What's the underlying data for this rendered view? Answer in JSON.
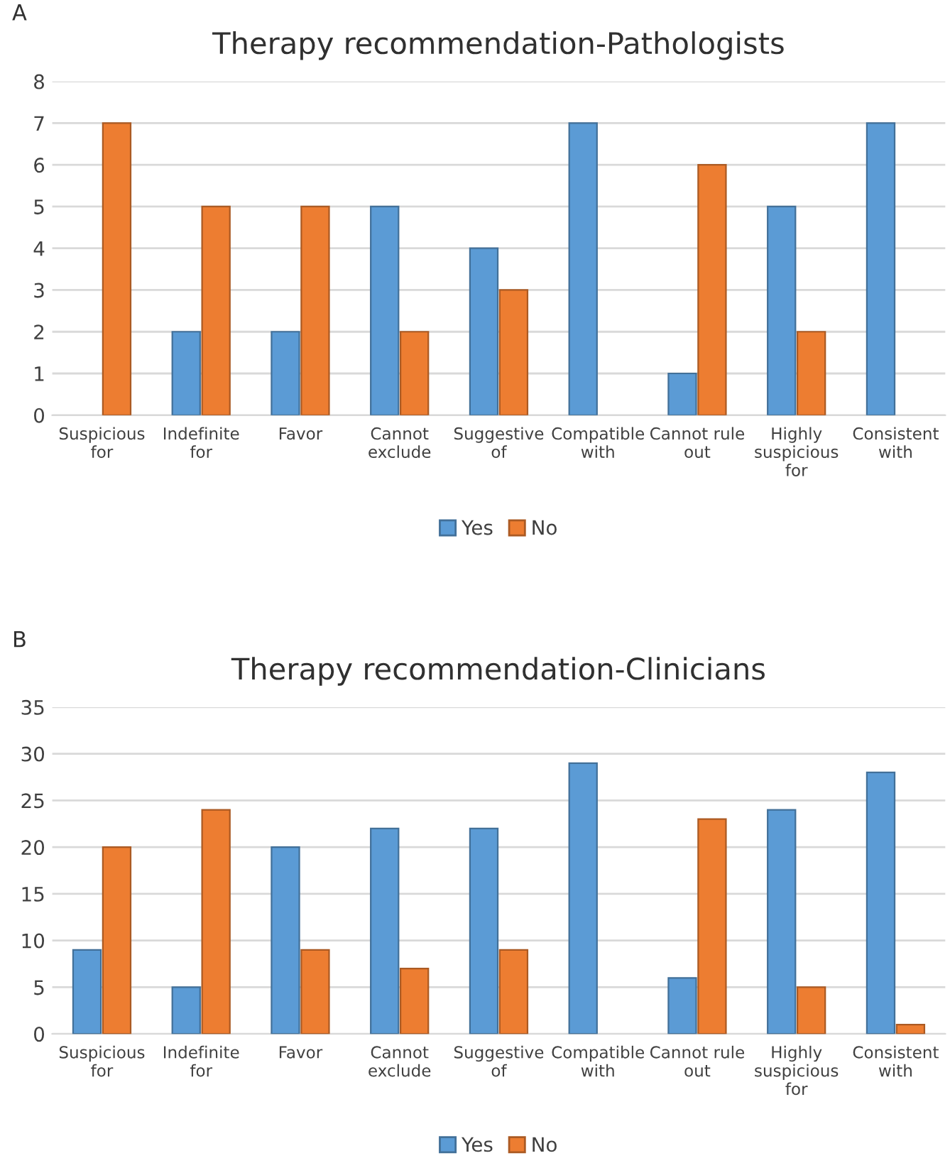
{
  "chart_data": [
    {
      "type": "bar",
      "title": "Therapy recommendation-Pathologists",
      "annotations": [
        "A"
      ],
      "categories": [
        "Suspicious for",
        "Indefinite for",
        "Favor",
        "Cannot exclude",
        "Suggestive of",
        "Compatible with",
        "Cannot rule out",
        "Highly suspicious for",
        "Consistent with"
      ],
      "series": [
        {
          "name": "Yes",
          "color": "#5b9bd5",
          "values": [
            0,
            2,
            2,
            5,
            4,
            7,
            1,
            5,
            7
          ]
        },
        {
          "name": "No",
          "color": "#ed7d31",
          "values": [
            7,
            5,
            5,
            2,
            3,
            0,
            6,
            2,
            0
          ]
        }
      ],
      "ylim": [
        0,
        8
      ],
      "yticks": [
        0,
        1,
        2,
        3,
        4,
        5,
        6,
        7,
        8
      ],
      "grid": "y",
      "legend": "bottom"
    },
    {
      "type": "bar",
      "title": "Therapy recommendation-Clinicians",
      "annotations": [
        "B"
      ],
      "categories": [
        "Suspicious for",
        "Indefinite for",
        "Favor",
        "Cannot exclude",
        "Suggestive of",
        "Compatible with",
        "Cannot rule out",
        "Highly suspicious for",
        "Consistent with"
      ],
      "series": [
        {
          "name": "Yes",
          "color": "#5b9bd5",
          "values": [
            9,
            5,
            20,
            22,
            22,
            29,
            6,
            24,
            28
          ]
        },
        {
          "name": "No",
          "color": "#ed7d31",
          "values": [
            20,
            24,
            9,
            7,
            9,
            0,
            23,
            5,
            1
          ]
        }
      ],
      "ylim": [
        0,
        35
      ],
      "yticks": [
        0,
        5,
        10,
        15,
        20,
        25,
        30,
        35
      ],
      "grid": "y",
      "legend": "bottom"
    }
  ]
}
